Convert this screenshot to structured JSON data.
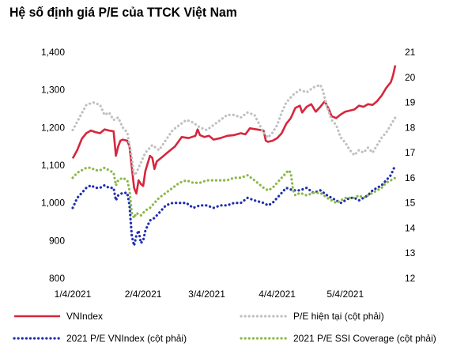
{
  "chart_data": {
    "type": "line",
    "title": "Hệ số định giá P/E của TTCK Việt Nam",
    "x_ticks": [
      "1/4/2021",
      "2/4/2021",
      "3/4/2021",
      "4/4/2021",
      "5/4/2021"
    ],
    "x_tick_day_index": [
      0,
      31,
      59,
      90,
      120
    ],
    "x_range_day_index": [
      0,
      142
    ],
    "y_left": {
      "ticks": [
        "800",
        "900",
        "1,000",
        "1,100",
        "1,200",
        "1,300",
        "1,400"
      ],
      "range": [
        800,
        1400
      ]
    },
    "y_right": {
      "ticks": [
        "12",
        "13",
        "14",
        "15",
        "16",
        "17",
        "18",
        "19",
        "20",
        "21"
      ],
      "range": [
        12,
        21
      ]
    },
    "grid": false,
    "legend_position": "bottom",
    "series": [
      {
        "name": "VNIndex",
        "axis": "left",
        "style": "solid",
        "color": "#d7263d",
        "points": [
          [
            0,
            1118
          ],
          [
            2,
            1140
          ],
          [
            4,
            1170
          ],
          [
            6,
            1185
          ],
          [
            8,
            1192
          ],
          [
            10,
            1188
          ],
          [
            12,
            1185
          ],
          [
            14,
            1195
          ],
          [
            16,
            1192
          ],
          [
            18,
            1190
          ],
          [
            19,
            1125
          ],
          [
            20,
            1150
          ],
          [
            21,
            1165
          ],
          [
            22,
            1168
          ],
          [
            24,
            1165
          ],
          [
            25,
            1150
          ],
          [
            26,
            1095
          ],
          [
            27,
            1040
          ],
          [
            28,
            1025
          ],
          [
            29,
            1060
          ],
          [
            30,
            1050
          ],
          [
            31,
            1045
          ],
          [
            32,
            1085
          ],
          [
            34,
            1125
          ],
          [
            35,
            1120
          ],
          [
            36,
            1090
          ],
          [
            37,
            1110
          ],
          [
            39,
            1120
          ],
          [
            42,
            1135
          ],
          [
            45,
            1150
          ],
          [
            48,
            1175
          ],
          [
            51,
            1172
          ],
          [
            54,
            1178
          ],
          [
            55,
            1195
          ],
          [
            56,
            1180
          ],
          [
            58,
            1175
          ],
          [
            60,
            1178
          ],
          [
            62,
            1168
          ],
          [
            65,
            1172
          ],
          [
            68,
            1178
          ],
          [
            71,
            1180
          ],
          [
            74,
            1185
          ],
          [
            76,
            1182
          ],
          [
            78,
            1198
          ],
          [
            81,
            1195
          ],
          [
            84,
            1192
          ],
          [
            85,
            1165
          ],
          [
            86,
            1162
          ],
          [
            88,
            1165
          ],
          [
            90,
            1172
          ],
          [
            92,
            1185
          ],
          [
            94,
            1210
          ],
          [
            96,
            1225
          ],
          [
            98,
            1252
          ],
          [
            100,
            1258
          ],
          [
            101,
            1240
          ],
          [
            103,
            1255
          ],
          [
            105,
            1262
          ],
          [
            107,
            1242
          ],
          [
            109,
            1255
          ],
          [
            111,
            1270
          ],
          [
            113,
            1245
          ],
          [
            114,
            1230
          ],
          [
            116,
            1225
          ],
          [
            118,
            1235
          ],
          [
            120,
            1242
          ],
          [
            122,
            1245
          ],
          [
            124,
            1248
          ],
          [
            126,
            1258
          ],
          [
            128,
            1255
          ],
          [
            130,
            1262
          ],
          [
            132,
            1260
          ],
          [
            134,
            1270
          ],
          [
            136,
            1285
          ],
          [
            138,
            1305
          ],
          [
            140,
            1320
          ],
          [
            141,
            1338
          ],
          [
            142,
            1365
          ]
        ]
      },
      {
        "name": "P/E hiện tại (cột phải)",
        "axis": "right",
        "style": "dotted",
        "color": "#c0c0c0",
        "points": [
          [
            0,
            17.9
          ],
          [
            3,
            18.4
          ],
          [
            6,
            18.9
          ],
          [
            9,
            19.0
          ],
          [
            12,
            18.9
          ],
          [
            14,
            18.5
          ],
          [
            16,
            18.6
          ],
          [
            18,
            18.3
          ],
          [
            20,
            18.4
          ],
          [
            22,
            18.0
          ],
          [
            24,
            17.8
          ],
          [
            26,
            16.8
          ],
          [
            27,
            16.1
          ],
          [
            28,
            16.2
          ],
          [
            30,
            16.6
          ],
          [
            32,
            17.0
          ],
          [
            35,
            17.3
          ],
          [
            38,
            17.1
          ],
          [
            41,
            17.5
          ],
          [
            44,
            17.9
          ],
          [
            47,
            18.1
          ],
          [
            50,
            18.3
          ],
          [
            53,
            18.2
          ],
          [
            56,
            18.0
          ],
          [
            59,
            17.9
          ],
          [
            62,
            18.1
          ],
          [
            65,
            18.3
          ],
          [
            68,
            18.5
          ],
          [
            71,
            18.5
          ],
          [
            74,
            18.4
          ],
          [
            77,
            18.6
          ],
          [
            80,
            18.5
          ],
          [
            84,
            17.8
          ],
          [
            86,
            17.6
          ],
          [
            88,
            17.8
          ],
          [
            90,
            18.1
          ],
          [
            92,
            18.6
          ],
          [
            94,
            19.0
          ],
          [
            97,
            19.3
          ],
          [
            100,
            19.5
          ],
          [
            103,
            19.4
          ],
          [
            106,
            19.6
          ],
          [
            109,
            19.7
          ],
          [
            110,
            19.5
          ],
          [
            112,
            18.8
          ],
          [
            114,
            18.3
          ],
          [
            116,
            18.1
          ],
          [
            118,
            17.6
          ],
          [
            120,
            17.4
          ],
          [
            122,
            17.1
          ],
          [
            124,
            16.9
          ],
          [
            126,
            17.1
          ],
          [
            128,
            17.0
          ],
          [
            130,
            17.2
          ],
          [
            132,
            17.0
          ],
          [
            134,
            17.3
          ],
          [
            136,
            17.6
          ],
          [
            138,
            17.8
          ],
          [
            140,
            18.1
          ],
          [
            142,
            18.4
          ]
        ]
      },
      {
        "name": "2021 P/E VNIndex (cột phải)",
        "axis": "right",
        "style": "dotted",
        "color": "#1f2fb0",
        "points": [
          [
            0,
            14.8
          ],
          [
            2,
            15.2
          ],
          [
            4,
            15.4
          ],
          [
            6,
            15.6
          ],
          [
            8,
            15.7
          ],
          [
            10,
            15.6
          ],
          [
            12,
            15.6
          ],
          [
            14,
            15.7
          ],
          [
            16,
            15.6
          ],
          [
            18,
            15.6
          ],
          [
            19,
            15.1
          ],
          [
            20,
            15.3
          ],
          [
            22,
            15.4
          ],
          [
            24,
            15.4
          ],
          [
            25,
            14.9
          ],
          [
            26,
            13.7
          ],
          [
            27,
            13.3
          ],
          [
            28,
            13.7
          ],
          [
            29,
            13.9
          ],
          [
            30,
            13.4
          ],
          [
            31,
            13.5
          ],
          [
            32,
            13.9
          ],
          [
            34,
            14.3
          ],
          [
            36,
            14.4
          ],
          [
            38,
            14.6
          ],
          [
            41,
            14.9
          ],
          [
            44,
            15.0
          ],
          [
            47,
            15.0
          ],
          [
            50,
            15.0
          ],
          [
            53,
            14.8
          ],
          [
            56,
            14.9
          ],
          [
            59,
            14.9
          ],
          [
            62,
            14.8
          ],
          [
            65,
            14.9
          ],
          [
            68,
            14.9
          ],
          [
            71,
            15.0
          ],
          [
            74,
            15.0
          ],
          [
            77,
            15.2
          ],
          [
            80,
            15.1
          ],
          [
            84,
            15.0
          ],
          [
            86,
            14.9
          ],
          [
            88,
            15.0
          ],
          [
            90,
            15.2
          ],
          [
            92,
            15.4
          ],
          [
            94,
            15.6
          ],
          [
            97,
            15.5
          ],
          [
            100,
            15.5
          ],
          [
            103,
            15.6
          ],
          [
            106,
            15.4
          ],
          [
            109,
            15.5
          ],
          [
            112,
            15.3
          ],
          [
            114,
            15.2
          ],
          [
            116,
            15.1
          ],
          [
            118,
            15.0
          ],
          [
            120,
            15.1
          ],
          [
            122,
            15.2
          ],
          [
            124,
            15.2
          ],
          [
            126,
            15.1
          ],
          [
            128,
            15.2
          ],
          [
            130,
            15.3
          ],
          [
            132,
            15.5
          ],
          [
            134,
            15.6
          ],
          [
            136,
            15.7
          ],
          [
            138,
            15.9
          ],
          [
            140,
            16.1
          ],
          [
            142,
            16.5
          ]
        ]
      },
      {
        "name": "2021 P/E SSI Coverage (cột phải)",
        "axis": "right",
        "style": "dotted",
        "color": "#8db84a",
        "points": [
          [
            0,
            16.0
          ],
          [
            2,
            16.2
          ],
          [
            4,
            16.3
          ],
          [
            6,
            16.4
          ],
          [
            8,
            16.4
          ],
          [
            10,
            16.3
          ],
          [
            12,
            16.3
          ],
          [
            14,
            16.4
          ],
          [
            16,
            16.3
          ],
          [
            18,
            16.2
          ],
          [
            19,
            15.7
          ],
          [
            20,
            15.9
          ],
          [
            22,
            16.0
          ],
          [
            24,
            15.9
          ],
          [
            25,
            15.5
          ],
          [
            26,
            14.6
          ],
          [
            27,
            14.4
          ],
          [
            28,
            14.6
          ],
          [
            30,
            14.5
          ],
          [
            31,
            14.6
          ],
          [
            32,
            14.7
          ],
          [
            34,
            14.8
          ],
          [
            36,
            15.0
          ],
          [
            38,
            15.2
          ],
          [
            41,
            15.4
          ],
          [
            44,
            15.6
          ],
          [
            47,
            15.8
          ],
          [
            50,
            15.9
          ],
          [
            53,
            15.8
          ],
          [
            56,
            15.8
          ],
          [
            59,
            15.9
          ],
          [
            62,
            15.9
          ],
          [
            65,
            15.9
          ],
          [
            68,
            15.9
          ],
          [
            71,
            16.0
          ],
          [
            74,
            16.0
          ],
          [
            77,
            16.1
          ],
          [
            80,
            15.9
          ],
          [
            84,
            15.6
          ],
          [
            86,
            15.5
          ],
          [
            88,
            15.6
          ],
          [
            90,
            15.8
          ],
          [
            92,
            16.0
          ],
          [
            94,
            16.2
          ],
          [
            95,
            16.3
          ],
          [
            96,
            16.2
          ],
          [
            97,
            15.5
          ],
          [
            98,
            15.3
          ],
          [
            100,
            15.4
          ],
          [
            103,
            15.3
          ],
          [
            106,
            15.4
          ],
          [
            109,
            15.4
          ],
          [
            112,
            15.2
          ],
          [
            114,
            15.1
          ],
          [
            116,
            15.0
          ],
          [
            118,
            15.1
          ],
          [
            120,
            15.2
          ],
          [
            122,
            15.2
          ],
          [
            124,
            15.2
          ],
          [
            126,
            15.3
          ],
          [
            128,
            15.2
          ],
          [
            130,
            15.3
          ],
          [
            132,
            15.4
          ],
          [
            134,
            15.5
          ],
          [
            136,
            15.6
          ],
          [
            138,
            15.8
          ],
          [
            140,
            15.9
          ],
          [
            142,
            16.0
          ]
        ]
      }
    ]
  }
}
